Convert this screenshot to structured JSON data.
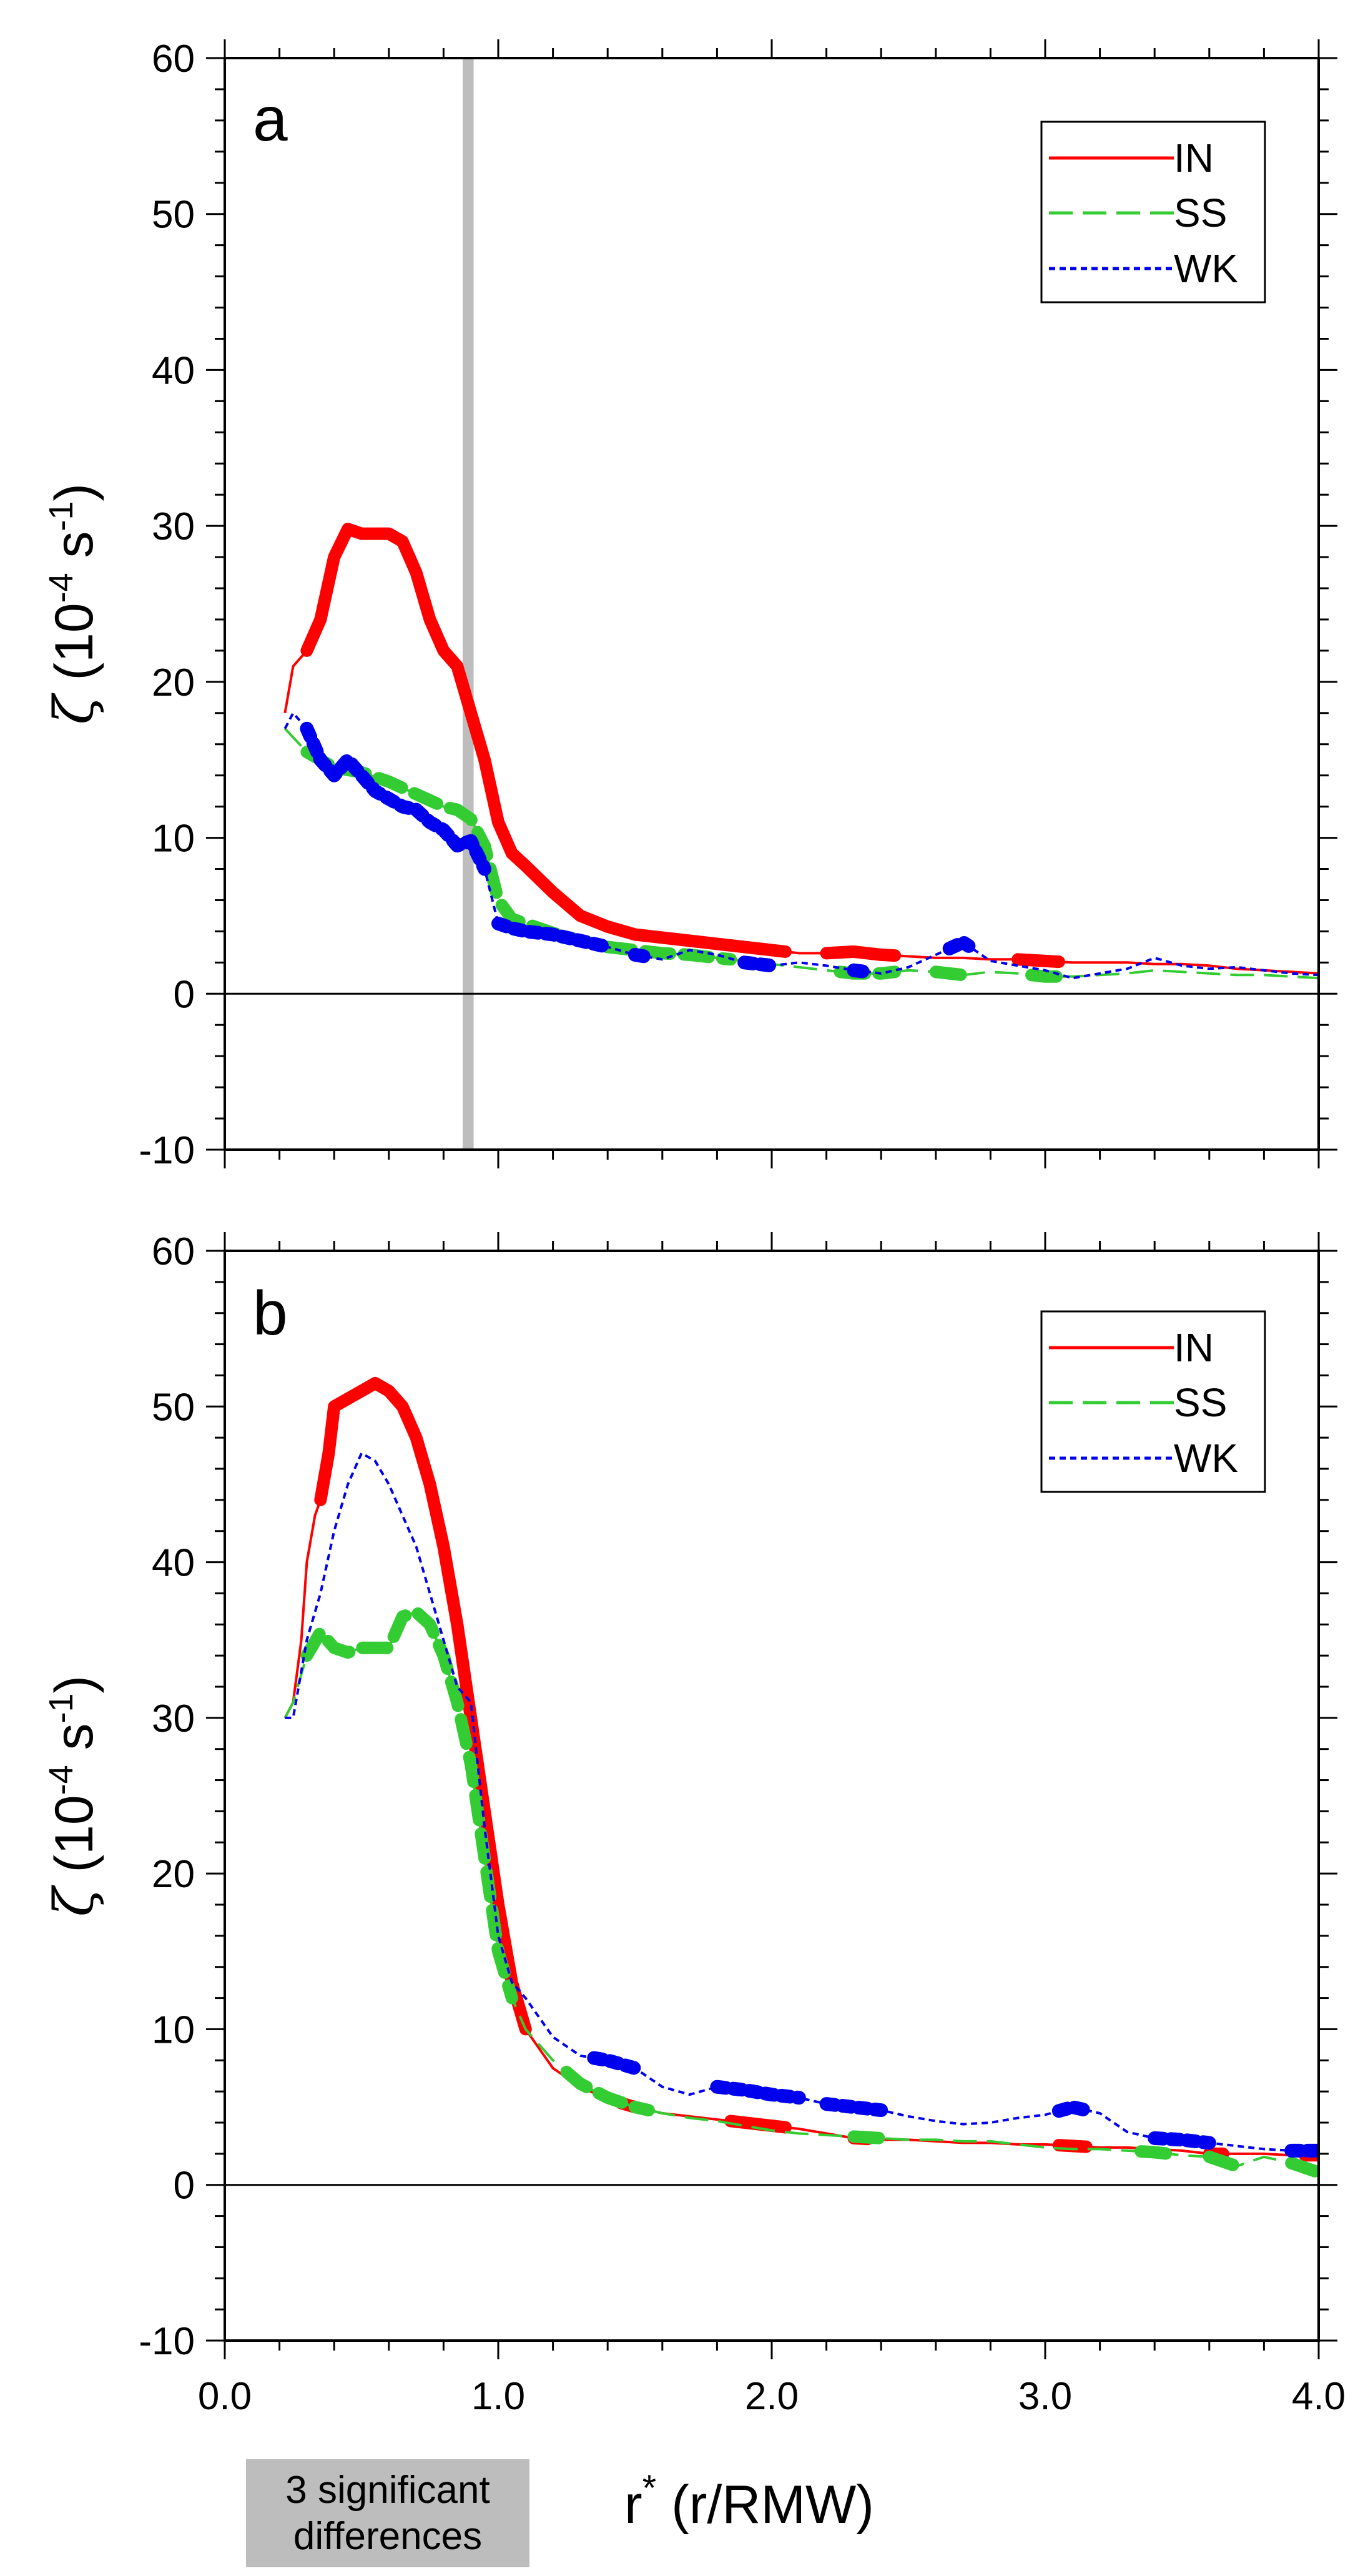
{
  "colors": {
    "IN": "#ff0000",
    "SS": "#33cc33",
    "WK": "#0000ee",
    "shade": "#bdbdbd"
  },
  "xlabel_main": "r",
  "xlabel_sup": "*",
  "xlabel_rest": " (r/RMW)",
  "significance_box": {
    "line1": "3 significant",
    "line2": "differences"
  },
  "chart_data": [
    {
      "type": "line",
      "panel": "a",
      "ylabel": "ζ (10-4 s-1)",
      "xlim": [
        0,
        4
      ],
      "ylim": [
        -10,
        60
      ],
      "xticks": [
        "0.0",
        "1.0",
        "2.0",
        "3.0",
        "4.0"
      ],
      "yticks": [
        "-10",
        "0",
        "10",
        "20",
        "30",
        "40",
        "50",
        "60"
      ],
      "legend": "top-right",
      "shaded_band_x": [
        0.87,
        0.91
      ],
      "series": [
        {
          "name": "IN",
          "style": "solid",
          "x": [
            0.22,
            0.25,
            0.3,
            0.35,
            0.4,
            0.45,
            0.5,
            0.6,
            0.65,
            0.7,
            0.75,
            0.8,
            0.85,
            0.9,
            0.95,
            1.0,
            1.05,
            1.1,
            1.2,
            1.3,
            1.4,
            1.5,
            1.6,
            1.7,
            1.8,
            1.9,
            2.0,
            2.1,
            2.2,
            2.3,
            2.4,
            2.5,
            2.6,
            2.7,
            2.8,
            2.9,
            3.0,
            3.1,
            3.2,
            3.3,
            3.4,
            3.5,
            3.6,
            3.7,
            3.8,
            3.9,
            4.0
          ],
          "y": [
            18,
            21,
            22,
            24,
            28,
            29.8,
            29.5,
            29.5,
            29,
            27,
            24,
            22,
            21,
            18,
            15,
            11,
            9,
            8.2,
            6.5,
            5,
            4.3,
            3.8,
            3.6,
            3.4,
            3.2,
            3.0,
            2.8,
            2.6,
            2.6,
            2.7,
            2.5,
            2.4,
            2.3,
            2.3,
            2.2,
            2.2,
            2.1,
            2.0,
            2.0,
            2.0,
            1.9,
            1.9,
            1.8,
            1.6,
            1.5,
            1.4,
            1.3
          ],
          "bold_ranges": [
            [
              0.3,
              2.05
            ],
            [
              2.2,
              2.45
            ],
            [
              2.9,
              3.05
            ]
          ]
        },
        {
          "name": "SS",
          "style": "dashed",
          "x": [
            0.22,
            0.3,
            0.4,
            0.5,
            0.6,
            0.7,
            0.8,
            0.85,
            0.9,
            0.95,
            1.0,
            1.05,
            1.1,
            1.2,
            1.3,
            1.4,
            1.5,
            1.6,
            1.7,
            1.8,
            1.9,
            2.0,
            2.1,
            2.2,
            2.3,
            2.4,
            2.5,
            2.6,
            2.7,
            2.8,
            2.9,
            3.0,
            3.1,
            3.2,
            3.3,
            3.4,
            3.5,
            3.6,
            3.7,
            3.8,
            3.9,
            4.0
          ],
          "y": [
            17,
            15.5,
            14.5,
            14.2,
            13.6,
            12.8,
            12,
            11.8,
            11.2,
            9.5,
            6,
            4.8,
            4.5,
            3.9,
            3.4,
            3.0,
            2.8,
            2.6,
            2.5,
            2.3,
            2.1,
            1.9,
            1.7,
            1.5,
            1.3,
            1.3,
            1.5,
            1.4,
            1.2,
            1.4,
            1.3,
            1.1,
            1.1,
            1.2,
            1.3,
            1.5,
            1.4,
            1.3,
            1.2,
            1.2,
            1.1,
            1.0
          ],
          "bold_ranges": [
            [
              0.3,
              1.85
            ],
            [
              2.25,
              2.45
            ],
            [
              2.6,
              2.7
            ],
            [
              2.95,
              3.05
            ]
          ]
        },
        {
          "name": "WK",
          "style": "dotted",
          "x": [
            0.22,
            0.25,
            0.3,
            0.35,
            0.4,
            0.45,
            0.5,
            0.55,
            0.6,
            0.65,
            0.7,
            0.75,
            0.8,
            0.85,
            0.9,
            0.95,
            1.0,
            1.05,
            1.1,
            1.2,
            1.3,
            1.4,
            1.5,
            1.6,
            1.7,
            1.8,
            1.9,
            2.0,
            2.1,
            2.2,
            2.3,
            2.4,
            2.5,
            2.6,
            2.7,
            2.8,
            2.9,
            3.0,
            3.1,
            3.2,
            3.3,
            3.4,
            3.5,
            3.6,
            3.7,
            3.8,
            3.9,
            4.0
          ],
          "y": [
            17,
            18,
            17,
            15,
            14,
            15,
            14,
            13,
            12.5,
            12,
            11.8,
            11,
            10.5,
            9.5,
            9.8,
            8,
            4.5,
            4.2,
            4,
            3.8,
            3.4,
            3,
            2.5,
            2.2,
            2.8,
            2.5,
            2,
            1.8,
            2,
            1.8,
            1.5,
            1.3,
            1.7,
            2.5,
            3.3,
            2.1,
            1.8,
            1.5,
            1.0,
            1.3,
            1.6,
            2.3,
            1.8,
            1.6,
            1.7,
            1.5,
            1.3,
            1.2
          ],
          "bold_ranges": [
            [
              0.3,
              0.95
            ],
            [
              1.0,
              1.4
            ],
            [
              1.5,
              1.55
            ],
            [
              1.9,
              2.0
            ],
            [
              2.3,
              2.35
            ],
            [
              2.65,
              2.72
            ]
          ]
        }
      ]
    },
    {
      "type": "line",
      "panel": "b",
      "ylabel": "ζ (10-4 s-1)",
      "xlim": [
        0,
        4
      ],
      "ylim": [
        -10,
        60
      ],
      "xticks": [
        "0.0",
        "1.0",
        "2.0",
        "3.0",
        "4.0"
      ],
      "yticks": [
        "-10",
        "0",
        "10",
        "20",
        "30",
        "40",
        "50",
        "60"
      ],
      "legend": "top-right",
      "series": [
        {
          "name": "IN",
          "style": "solid",
          "x": [
            0.22,
            0.25,
            0.28,
            0.3,
            0.33,
            0.35,
            0.38,
            0.4,
            0.45,
            0.5,
            0.55,
            0.6,
            0.65,
            0.7,
            0.75,
            0.8,
            0.85,
            0.9,
            0.95,
            1.0,
            1.05,
            1.1,
            1.2,
            1.3,
            1.4,
            1.5,
            1.6,
            1.7,
            1.8,
            1.9,
            2.0,
            2.1,
            2.2,
            2.3,
            2.4,
            2.5,
            2.6,
            2.7,
            2.8,
            2.9,
            3.0,
            3.1,
            3.2,
            3.3,
            3.4,
            3.5,
            3.6,
            3.7,
            3.8,
            3.9,
            4.0
          ],
          "y": [
            30,
            31,
            35,
            40,
            43,
            44,
            47,
            50,
            50.5,
            51,
            51.5,
            51,
            50,
            48,
            45,
            41,
            36,
            30,
            24,
            18,
            13,
            10,
            7.5,
            6.3,
            5.5,
            5,
            4.6,
            4.4,
            4.2,
            4.0,
            3.8,
            3.6,
            3.3,
            3.0,
            2.9,
            2.9,
            2.8,
            2.7,
            2.7,
            2.6,
            2.6,
            2.5,
            2.4,
            2.4,
            2.3,
            2.2,
            2.0,
            2.0,
            2.0,
            1.9,
            1.9
          ],
          "bold_ranges": [
            [
              0.35,
              1.1
            ],
            [
              1.45,
              1.5
            ],
            [
              1.85,
              2.05
            ],
            [
              2.3,
              2.35
            ],
            [
              3.05,
              3.15
            ],
            [
              3.6,
              3.65
            ],
            [
              3.95,
              4.0
            ]
          ]
        },
        {
          "name": "SS",
          "style": "dashed",
          "x": [
            0.22,
            0.25,
            0.3,
            0.35,
            0.4,
            0.45,
            0.5,
            0.55,
            0.6,
            0.65,
            0.7,
            0.75,
            0.8,
            0.85,
            0.9,
            0.95,
            1.0,
            1.05,
            1.1,
            1.2,
            1.3,
            1.4,
            1.5,
            1.6,
            1.7,
            1.8,
            1.9,
            2.0,
            2.1,
            2.2,
            2.3,
            2.4,
            2.5,
            2.6,
            2.7,
            2.8,
            2.9,
            3.0,
            3.1,
            3.2,
            3.3,
            3.4,
            3.5,
            3.6,
            3.7,
            3.8,
            3.9,
            4.0
          ],
          "y": [
            30,
            31,
            34,
            35.5,
            34.5,
            34.2,
            34.5,
            34.5,
            34.5,
            36.5,
            36.8,
            36,
            34,
            31,
            27,
            21,
            15,
            12,
            10,
            8,
            6.5,
            5.6,
            5,
            4.6,
            4.3,
            4.1,
            3.8,
            3.5,
            3.3,
            3.2,
            3.1,
            3.0,
            2.9,
            2.9,
            2.8,
            2.8,
            2.6,
            2.4,
            2.3,
            2.3,
            2.2,
            2.1,
            1.9,
            1.8,
            1.2,
            1.8,
            1.4,
            0.8
          ],
          "bold_ranges": [
            [
              0.3,
              1.05
            ],
            [
              1.25,
              1.55
            ],
            [
              2.3,
              2.4
            ],
            [
              3.35,
              3.45
            ],
            [
              3.6,
              3.7
            ],
            [
              3.9,
              4.0
            ]
          ]
        },
        {
          "name": "WK",
          "style": "dotted",
          "x": [
            0.22,
            0.25,
            0.3,
            0.35,
            0.4,
            0.45,
            0.5,
            0.55,
            0.6,
            0.65,
            0.7,
            0.75,
            0.8,
            0.85,
            0.9,
            0.95,
            1.0,
            1.05,
            1.1,
            1.2,
            1.3,
            1.4,
            1.5,
            1.6,
            1.7,
            1.8,
            1.9,
            2.0,
            2.1,
            2.2,
            2.3,
            2.4,
            2.5,
            2.6,
            2.7,
            2.8,
            2.9,
            3.0,
            3.1,
            3.2,
            3.3,
            3.4,
            3.5,
            3.6,
            3.7,
            3.8,
            3.9,
            4.0
          ],
          "y": [
            30,
            30,
            35,
            38,
            42,
            45,
            47,
            46.5,
            45,
            43,
            41,
            38,
            35,
            32,
            31,
            23,
            16,
            13,
            12,
            9.5,
            8.3,
            8,
            7.5,
            6.3,
            5.8,
            6.3,
            6.1,
            5.8,
            5.6,
            5.2,
            5.0,
            4.8,
            4.4,
            4.1,
            3.9,
            4.0,
            4.3,
            4.5,
            5.0,
            4.6,
            3.4,
            3.0,
            2.9,
            2.7,
            2.5,
            2.3,
            2.2,
            2.2
          ],
          "bold_ranges": [
            [
              1.35,
              1.5
            ],
            [
              1.8,
              2.1
            ],
            [
              2.2,
              2.4
            ],
            [
              3.05,
              3.15
            ],
            [
              3.4,
              3.6
            ],
            [
              3.9,
              4.0
            ]
          ]
        }
      ]
    }
  ]
}
